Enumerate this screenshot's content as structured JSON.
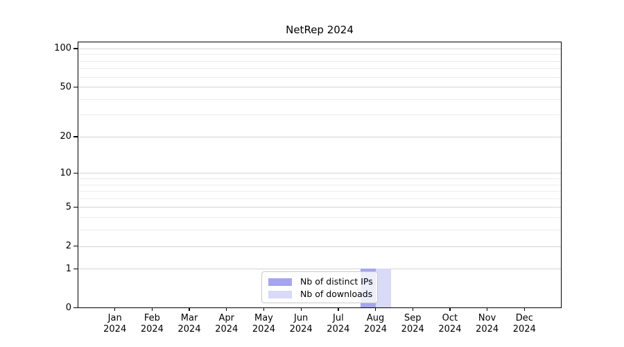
{
  "figure": {
    "background": "#ffffff"
  },
  "chart_data": {
    "type": "bar",
    "title": "NetRep 2024",
    "categories": [
      "Jan",
      "Feb",
      "Mar",
      "Apr",
      "May",
      "Jun",
      "Jul",
      "Aug",
      "Sep",
      "Oct",
      "Nov",
      "Dec"
    ],
    "category_year": "2024",
    "series": [
      {
        "name": "Nb of distinct IPs",
        "color": "#a5a5ee",
        "values": [
          0,
          0,
          0,
          0,
          0,
          0,
          0,
          1,
          0,
          0,
          0,
          0
        ]
      },
      {
        "name": "Nb of downloads",
        "color": "#d9d9f8",
        "values": [
          0,
          0,
          0,
          0,
          0,
          0,
          0,
          1,
          0,
          0,
          0,
          0
        ]
      }
    ],
    "xlabel": "",
    "ylabel": "",
    "y_scale": "log1p",
    "y_ticks": [
      0,
      1,
      2,
      5,
      10,
      20,
      50,
      100
    ],
    "y_minor_ticks": [
      3,
      4,
      6,
      7,
      8,
      9,
      30,
      40,
      60,
      70,
      80,
      90
    ],
    "ylim": [
      0,
      113
    ],
    "grid": true,
    "legend_position": "lower center (inside plot)"
  },
  "colors": {
    "grid_major": "#d3d3d3",
    "grid_minor": "#ececec",
    "spine": "#000000",
    "text": "#000000",
    "legend_border": "#c9c9c9",
    "legend_background": "rgba(255,255,255,0.8)"
  }
}
